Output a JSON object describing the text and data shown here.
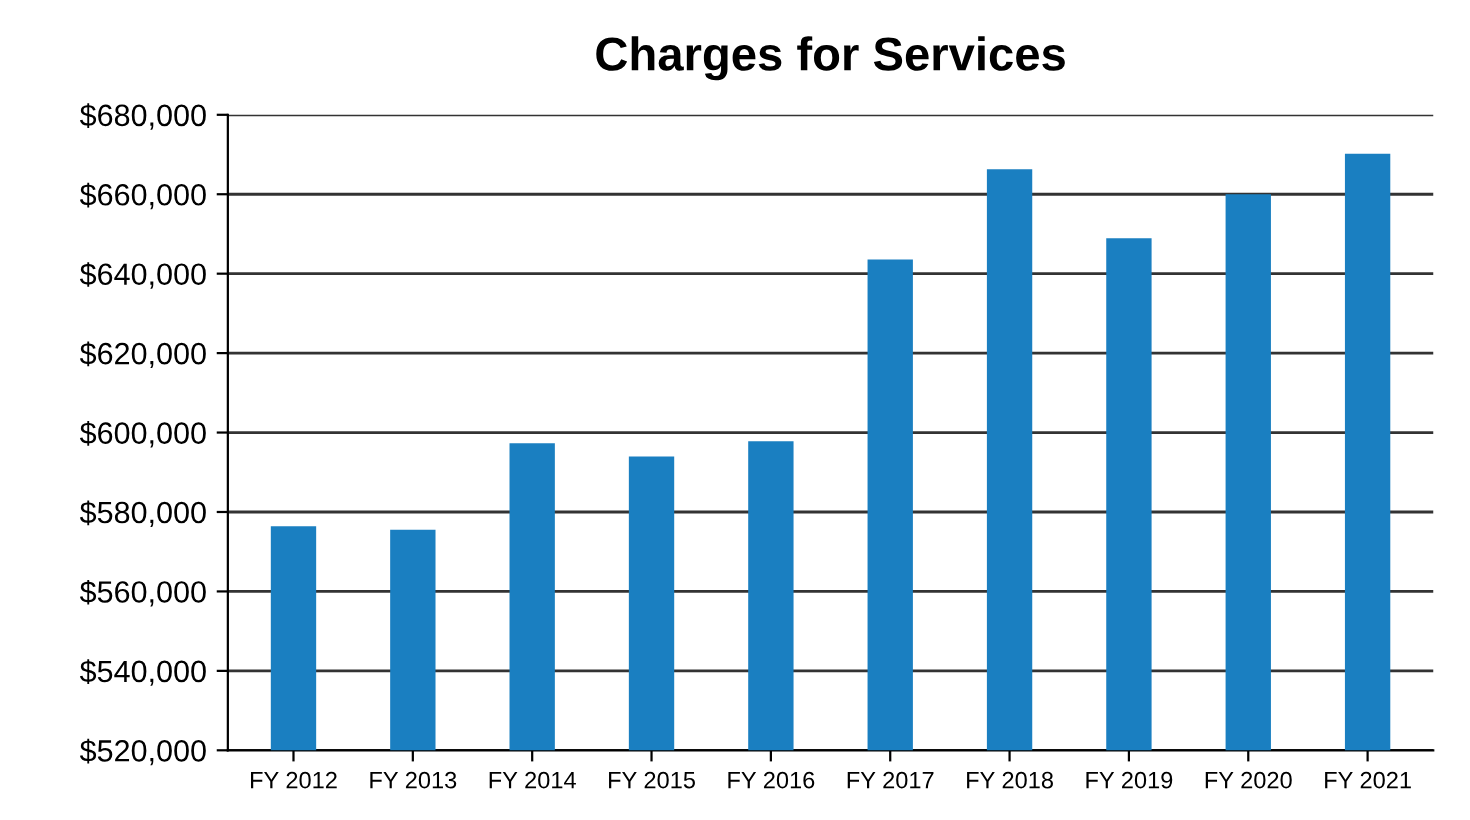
{
  "chart_data": {
    "type": "bar",
    "title": "Charges for Services",
    "categories": [
      "FY 2012",
      "FY 2013",
      "FY 2014",
      "FY 2015",
      "FY 2016",
      "FY 2017",
      "FY 2018",
      "FY 2019",
      "FY 2020",
      "FY 2021"
    ],
    "values": [
      576400,
      575500,
      597300,
      594000,
      597800,
      643600,
      666300,
      648900,
      660000,
      670200
    ],
    "color": "#1a7fc1",
    "ylim": [
      520000,
      680000
    ],
    "yticks": [
      {
        "value": 520000,
        "label": "$520,000"
      },
      {
        "value": 540000,
        "label": "$540,000"
      },
      {
        "value": 560000,
        "label": "$560,000"
      },
      {
        "value": 580000,
        "label": "$580,000"
      },
      {
        "value": 600000,
        "label": "$600,000"
      },
      {
        "value": 620000,
        "label": "$620,000"
      },
      {
        "value": 640000,
        "label": "$640,000"
      },
      {
        "value": 660000,
        "label": "$660,000"
      },
      {
        "value": 680000,
        "label": "$680,000"
      }
    ],
    "grid": "y",
    "legend": false
  }
}
